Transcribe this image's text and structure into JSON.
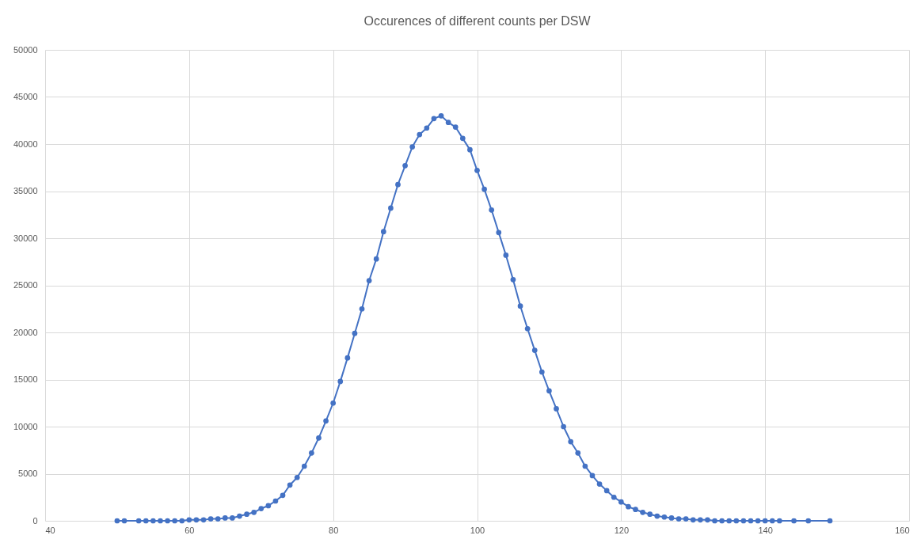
{
  "chart_data": {
    "type": "line",
    "title": "Occurences of different counts per DSW",
    "x": [
      50,
      51,
      53,
      54,
      55,
      56,
      57,
      58,
      59,
      60,
      61,
      62,
      63,
      64,
      65,
      66,
      67,
      68,
      69,
      70,
      71,
      72,
      73,
      74,
      75,
      76,
      77,
      78,
      79,
      80,
      81,
      82,
      83,
      84,
      85,
      86,
      87,
      88,
      89,
      90,
      91,
      92,
      93,
      94,
      95,
      96,
      97,
      98,
      99,
      100,
      101,
      102,
      103,
      104,
      105,
      106,
      107,
      108,
      109,
      110,
      111,
      112,
      113,
      114,
      115,
      116,
      117,
      118,
      119,
      120,
      121,
      122,
      123,
      124,
      125,
      126,
      127,
      128,
      129,
      130,
      131,
      132,
      133,
      134,
      135,
      136,
      137,
      138,
      139,
      140,
      141,
      142,
      144,
      146,
      149
    ],
    "series": [
      {
        "color": "#4472c4",
        "values": [
          0,
          0,
          0,
          0,
          0,
          0,
          0,
          0,
          0,
          100,
          100,
          100,
          200,
          200,
          300,
          300,
          500,
          700,
          900,
          1300,
          1600,
          2100,
          2700,
          3800,
          4600,
          5800,
          7200,
          8800,
          10600,
          12500,
          14800,
          17300,
          19900,
          22500,
          25500,
          27800,
          30700,
          33200,
          35700,
          37700,
          39700,
          41000,
          41700,
          42700,
          43000,
          42300,
          41800,
          40600,
          39400,
          37200,
          35200,
          33000,
          30600,
          28200,
          25600,
          22800,
          20400,
          18100,
          15800,
          13800,
          11900,
          10000,
          8400,
          7200,
          5800,
          4800,
          3900,
          3200,
          2500,
          2000,
          1500,
          1200,
          900,
          700,
          500,
          400,
          300,
          200,
          200,
          100,
          100,
          100,
          0,
          0,
          0,
          0,
          0,
          0,
          0,
          0,
          0,
          0,
          0,
          0,
          0
        ]
      }
    ],
    "xlim": [
      40,
      160
    ],
    "xticks": [
      40,
      60,
      80,
      100,
      120,
      140,
      160
    ],
    "ylim": [
      0,
      50000
    ],
    "yticks": [
      0,
      5000,
      10000,
      15000,
      20000,
      25000,
      30000,
      35000,
      40000,
      45000,
      50000
    ],
    "grid": true,
    "marker": "circle",
    "line_style": "solid"
  }
}
